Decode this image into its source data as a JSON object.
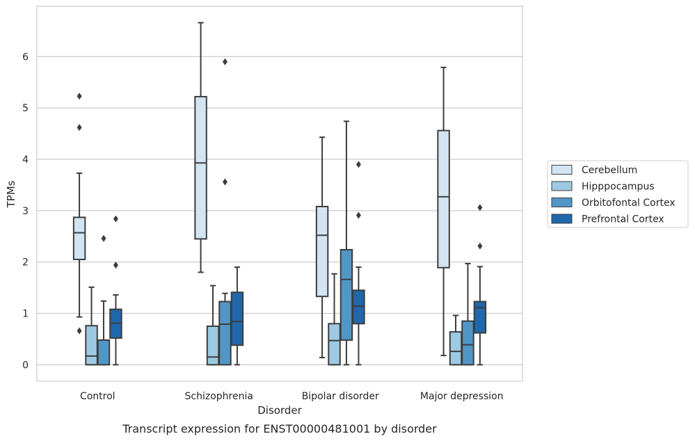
{
  "chart_data": {
    "type": "box",
    "caption": "Transcript expression for ENST00000481001 by disorder",
    "xlabel": "Disorder",
    "ylabel": "TPMs",
    "ylim": [
      -0.32,
      6.98
    ],
    "yticks": [
      0,
      1,
      2,
      3,
      4,
      5,
      6
    ],
    "grid": "horizontal",
    "legend_position": "right",
    "categories": [
      "Control",
      "Schizophrenia",
      "Bipolar disorder",
      "Major depression"
    ],
    "series": [
      {
        "name": "Cerebellum",
        "color": "#d3e4f3",
        "boxes": [
          {
            "whislo": 0.93,
            "q1": 2.05,
            "med": 2.57,
            "q3": 2.87,
            "whishi": 3.73,
            "fliers": [
              5.23,
              4.62,
              0.66
            ]
          },
          {
            "whislo": 1.8,
            "q1": 2.45,
            "med": 3.93,
            "q3": 5.22,
            "whishi": 6.66,
            "fliers": []
          },
          {
            "whislo": 0.14,
            "q1": 1.33,
            "med": 2.52,
            "q3": 3.08,
            "whishi": 4.43,
            "fliers": []
          },
          {
            "whislo": 0.18,
            "q1": 1.89,
            "med": 3.27,
            "q3": 4.56,
            "whishi": 5.79,
            "fliers": []
          }
        ]
      },
      {
        "name": "Hipppocampus",
        "color": "#9ec9e2",
        "boxes": [
          {
            "whislo": 0.0,
            "q1": 0.0,
            "med": 0.17,
            "q3": 0.76,
            "whishi": 1.51,
            "fliers": []
          },
          {
            "whislo": 0.0,
            "q1": 0.0,
            "med": 0.15,
            "q3": 0.75,
            "whishi": 1.54,
            "fliers": []
          },
          {
            "whislo": 0.0,
            "q1": 0.0,
            "med": 0.47,
            "q3": 0.8,
            "whishi": 1.77,
            "fliers": []
          },
          {
            "whislo": 0.0,
            "q1": 0.0,
            "med": 0.26,
            "q3": 0.64,
            "whishi": 0.96,
            "fliers": []
          }
        ]
      },
      {
        "name": "Orbitofontal Cortex",
        "color": "#5296c6",
        "boxes": [
          {
            "whislo": 0.0,
            "q1": 0.0,
            "med": 0.48,
            "q3": 0.48,
            "whishi": 1.24,
            "fliers": [
              2.46
            ]
          },
          {
            "whislo": 0.0,
            "q1": 0.0,
            "med": 0.79,
            "q3": 1.23,
            "whishi": 1.39,
            "fliers": [
              5.9,
              3.56
            ]
          },
          {
            "whislo": 0.0,
            "q1": 0.48,
            "med": 1.66,
            "q3": 2.24,
            "whishi": 4.74,
            "fliers": []
          },
          {
            "whislo": 0.0,
            "q1": 0.0,
            "med": 0.39,
            "q3": 0.85,
            "whishi": 1.97,
            "fliers": []
          }
        ]
      },
      {
        "name": "Prefrontal Cortex",
        "color": "#2167ac",
        "boxes": [
          {
            "whislo": 0.0,
            "q1": 0.52,
            "med": 0.81,
            "q3": 1.08,
            "whishi": 1.36,
            "fliers": [
              2.84,
              1.94
            ]
          },
          {
            "whislo": 0.0,
            "q1": 0.38,
            "med": 0.84,
            "q3": 1.41,
            "whishi": 1.9,
            "fliers": []
          },
          {
            "whislo": 0.0,
            "q1": 0.8,
            "med": 1.14,
            "q3": 1.45,
            "whishi": 1.9,
            "fliers": [
              3.9,
              2.91
            ]
          },
          {
            "whislo": 0.0,
            "q1": 0.62,
            "med": 1.11,
            "q3": 1.23,
            "whishi": 1.91,
            "fliers": [
              3.06,
              2.31
            ]
          }
        ]
      }
    ]
  }
}
